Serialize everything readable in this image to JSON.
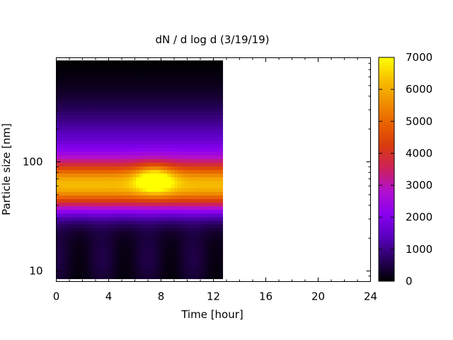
{
  "chart_data": {
    "type": "heatmap",
    "title": "dN / d log d (3/19/19)",
    "xlabel": "Time [hour]",
    "ylabel": "Particle size [nm]",
    "x_range": [
      0,
      24
    ],
    "x_ticks": [
      0,
      4,
      8,
      12,
      16,
      20,
      24
    ],
    "x_tick_labels": [
      "0",
      "4",
      "8",
      "12",
      "16",
      "20",
      "24"
    ],
    "y_scale": "log",
    "y_range": [
      8,
      900
    ],
    "y_ticks": [
      10,
      100
    ],
    "y_tick_labels": [
      "10",
      "100"
    ],
    "data_x_extent": [
      0,
      12.7
    ],
    "data_y_extent": [
      8.5,
      850
    ],
    "colorbar": {
      "range": [
        0,
        7000
      ],
      "ticks": [
        0,
        1000,
        2000,
        3000,
        4000,
        5000,
        6000,
        7000
      ],
      "tick_labels": [
        "0",
        "1000",
        "2000",
        "3000",
        "4000",
        "5000",
        "6000",
        "7000"
      ],
      "palette": "gnuplot (black-purple-red-orange-yellow)"
    },
    "features": {
      "peak_time_hour": 7.5,
      "peak_size_nm": 70,
      "peak_value": 7000,
      "main_mode_size_nm": 60,
      "main_mode_value_range": [
        4500,
        5500
      ]
    },
    "grid": false,
    "legend": "colorbar-right"
  }
}
